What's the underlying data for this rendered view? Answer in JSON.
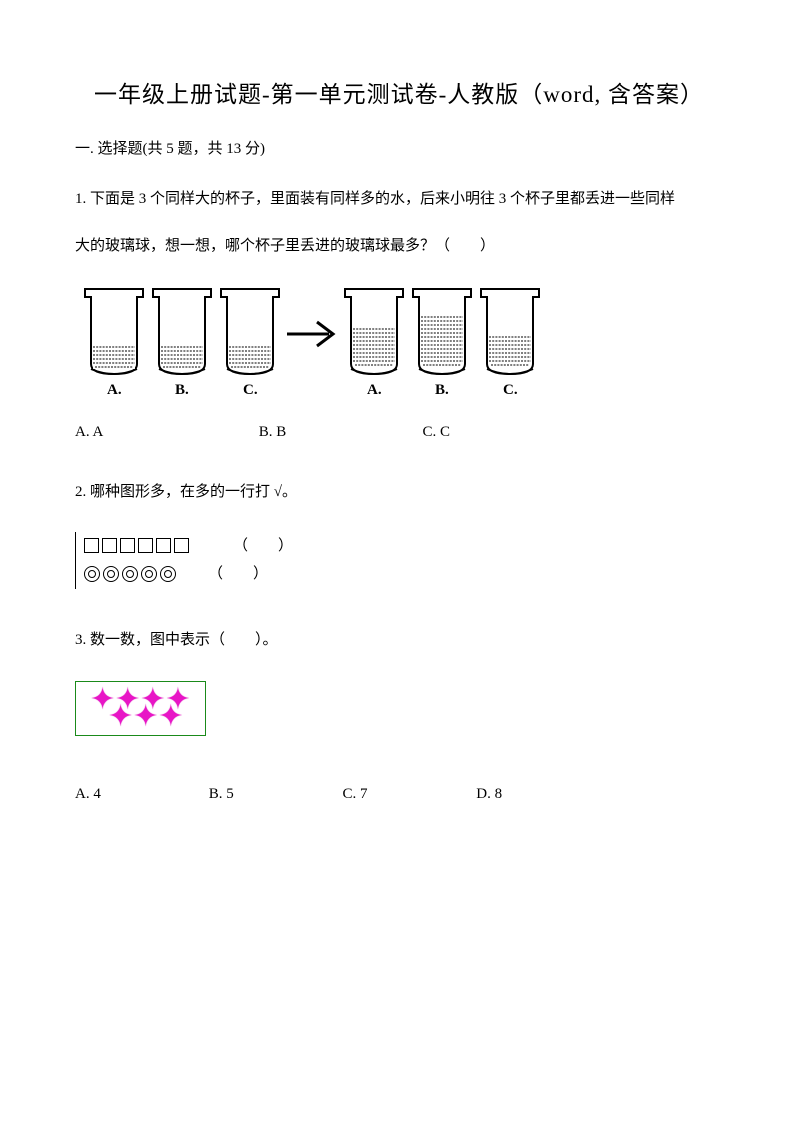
{
  "title": "一年级上册试题-第一单元测试卷-人教版（word, 含答案）",
  "section1": {
    "header": "一. 选择题(共 5 题，共 13 分)"
  },
  "q1": {
    "text_line1": "1. 下面是 3 个同样大的杯子，里面装有同样多的水，后来小明往 3 个杯子里都丢进一些同样",
    "text_line2": "大的玻璃球，想一想，哪个杯子里丢进的玻璃球最多？（　　）",
    "cup_labels": [
      "A.",
      "B.",
      "C.",
      "A.",
      "B.",
      "C."
    ],
    "cup_fill_left": [
      0.32,
      0.32,
      0.32
    ],
    "cup_fill_right": [
      0.55,
      0.7,
      0.45
    ],
    "options": {
      "a": "A. A",
      "b": "B. B",
      "c": "C. C"
    }
  },
  "q2": {
    "text": "2. 哪种图形多，在多的一行打 √。",
    "row1_paren": "（　　）",
    "row2_paren": "（　　）",
    "squares_count": 6,
    "circles_count": 5
  },
  "q3": {
    "text": "3. 数一数，图中表示（　　）。",
    "star_top_count": 4,
    "star_bottom_count": 3,
    "star_color": "#e815c6",
    "box_border": "#1a8a1a",
    "options": {
      "a": "A. 4",
      "b": "B. 5",
      "c": "C. 7",
      "d": "D. 8"
    }
  }
}
